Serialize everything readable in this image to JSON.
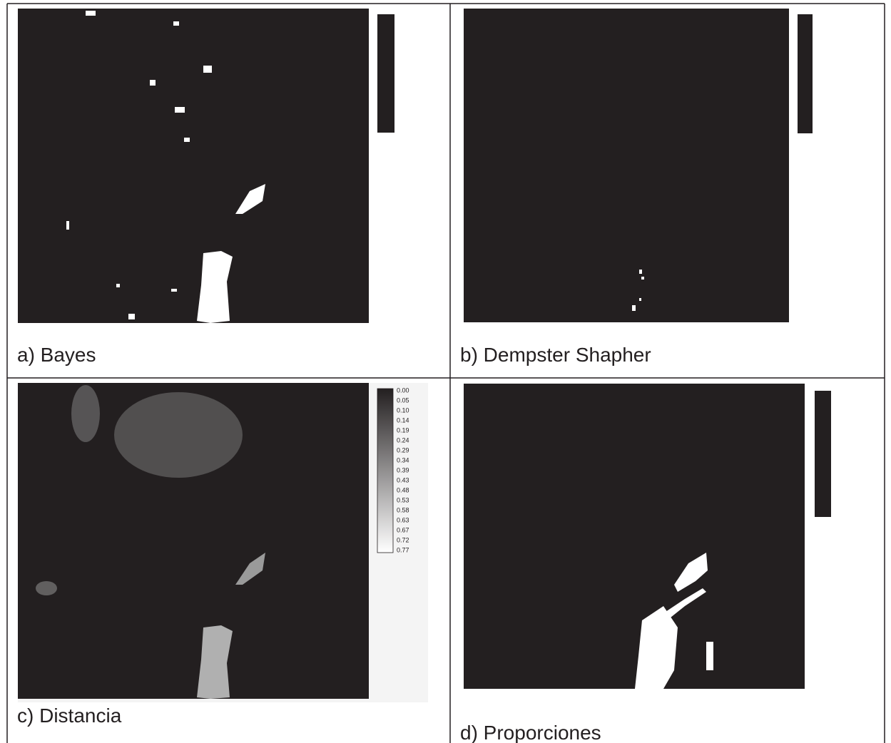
{
  "panels": [
    {
      "caption": "a) Bayes"
    },
    {
      "caption": "b) Dempster Shapher"
    },
    {
      "caption": "c) Distancia",
      "legend": [
        "0.00",
        "0.05",
        "0.10",
        "0.14",
        "0.19",
        "0.24",
        "0.29",
        "0.34",
        "0.39",
        "0.43",
        "0.48",
        "0.53",
        "0.58",
        "0.63",
        "0.67",
        "0.72",
        "0.77"
      ]
    },
    {
      "caption": "d) Proporciones"
    }
  ]
}
